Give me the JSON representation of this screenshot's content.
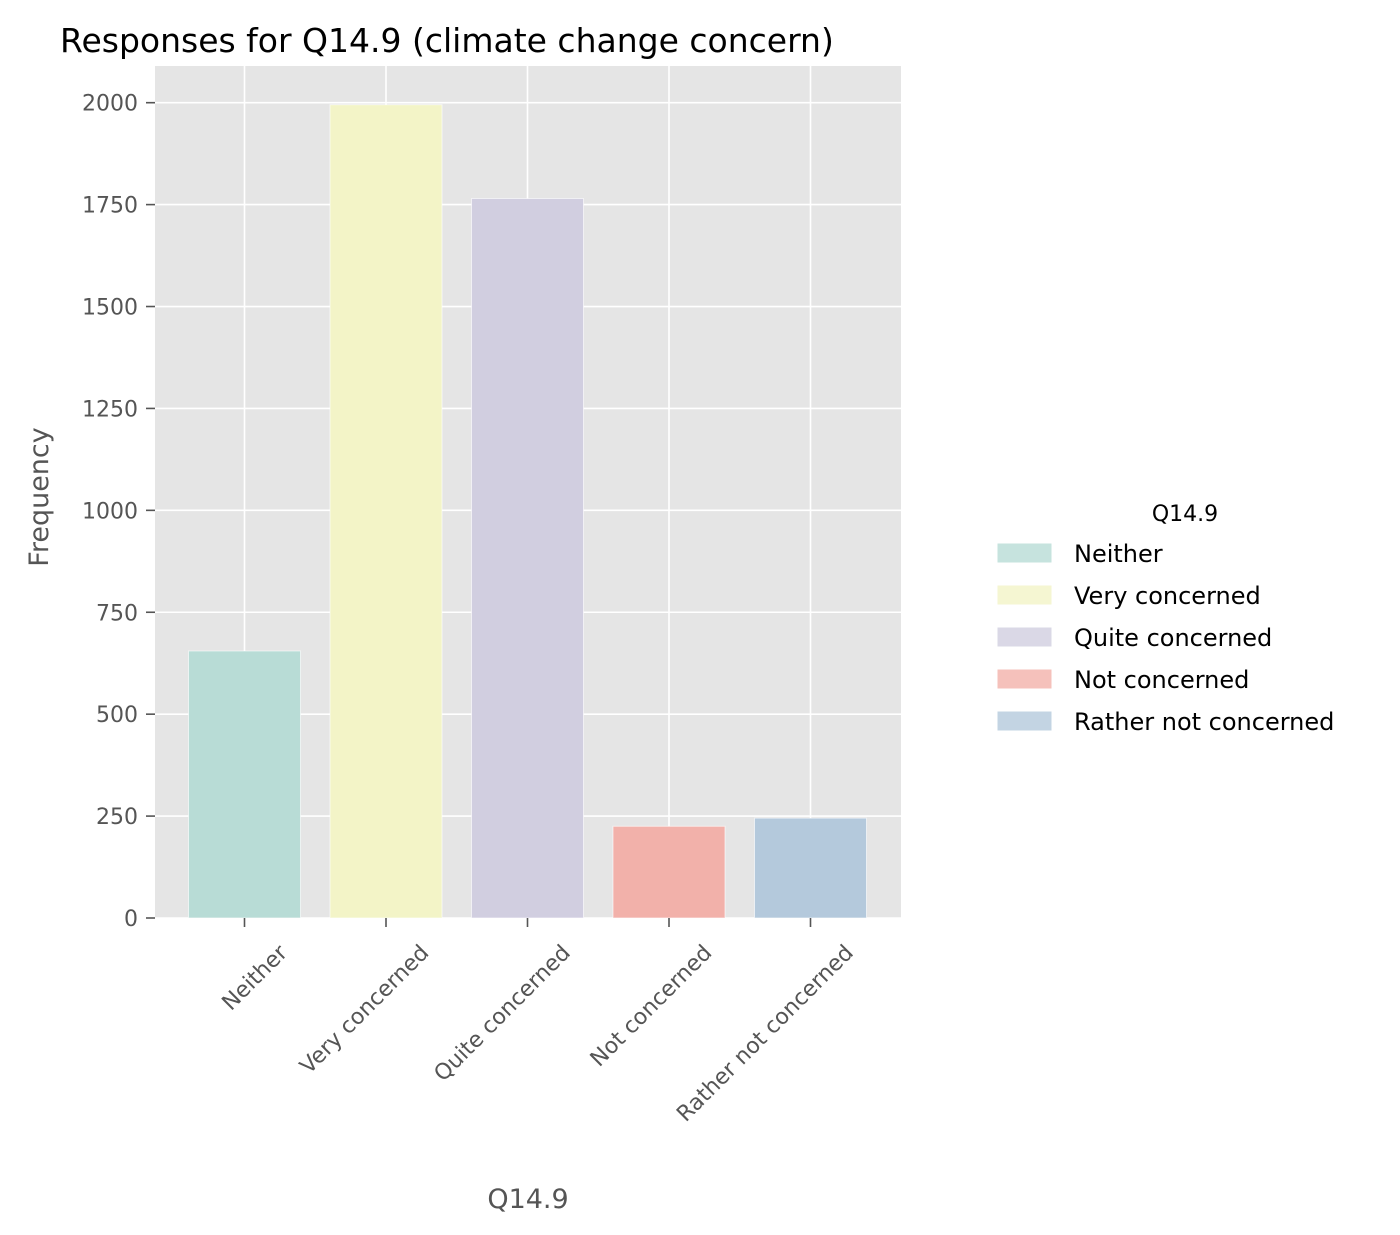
{
  "chart_data": {
    "type": "bar",
    "title": "Responses for Q14.9 (climate change concern)",
    "xlabel": "Q14.9",
    "ylabel": "Frequency",
    "categories": [
      "Neither",
      "Very concerned",
      "Quite concerned",
      "Not concerned",
      "Rather not concerned"
    ],
    "values": [
      655,
      1995,
      1765,
      225,
      245
    ],
    "colors": [
      "#b8dcd6",
      "#f3f4c7",
      "#d1cee0",
      "#f2b1aa",
      "#b4c9dc"
    ],
    "ylim": [
      0,
      2090
    ],
    "yticks": [
      0,
      250,
      500,
      750,
      1000,
      1250,
      1500,
      1750,
      2000
    ],
    "yticks_text": [
      "0",
      "250",
      "500",
      "750",
      "1000",
      "1250",
      "1500",
      "1750",
      "2000"
    ],
    "grid": true,
    "legend": {
      "title": "Q14.9",
      "placement": "right",
      "entries": [
        "Neither",
        "Very concerned",
        "Quite concerned",
        "Not concerned",
        "Rather not concerned"
      ]
    }
  }
}
